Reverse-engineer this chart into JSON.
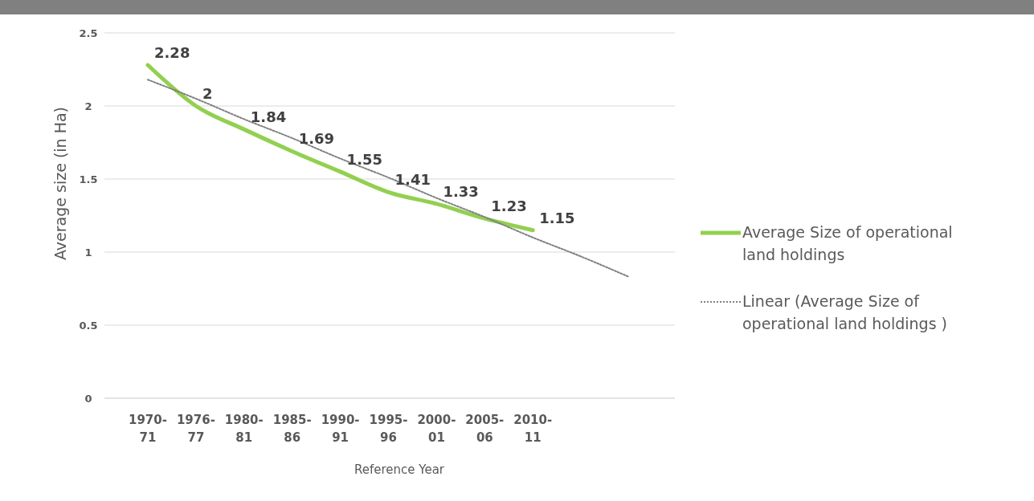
{
  "chart_data": {
    "type": "line",
    "xlabel": "Reference Year",
    "ylabel": "Average size (in Ha)",
    "categories": [
      "1970-71",
      "1976-77",
      "1980-81",
      "1985-86",
      "1990-91",
      "1995-96",
      "2000-01",
      "2005-06",
      "2010-11",
      null,
      null
    ],
    "series": [
      {
        "name": "Average Size of operational land holdings",
        "color": "#92d050",
        "values": [
          2.28,
          2,
          1.84,
          1.69,
          1.55,
          1.41,
          1.33,
          1.23,
          1.15,
          null,
          null
        ],
        "value_labels": [
          "2.28",
          "2",
          "1.84",
          "1.69",
          "1.55",
          "1.41",
          "1.33",
          "1.23",
          "1.15",
          null,
          null
        ],
        "line_style": "solid"
      },
      {
        "name": "Linear (Average Size of operational land holdings )",
        "color": "#808080",
        "values": [
          2.18,
          2.05,
          1.91,
          1.78,
          1.64,
          1.51,
          1.37,
          1.24,
          1.1,
          0.97,
          0.83
        ],
        "line_style": "dotted"
      }
    ],
    "ylim": [
      0,
      2.5
    ],
    "yticks": [
      0,
      0.5,
      1,
      1.5,
      2,
      2.5
    ],
    "grid": "y",
    "legend": "right",
    "marker": "none"
  }
}
